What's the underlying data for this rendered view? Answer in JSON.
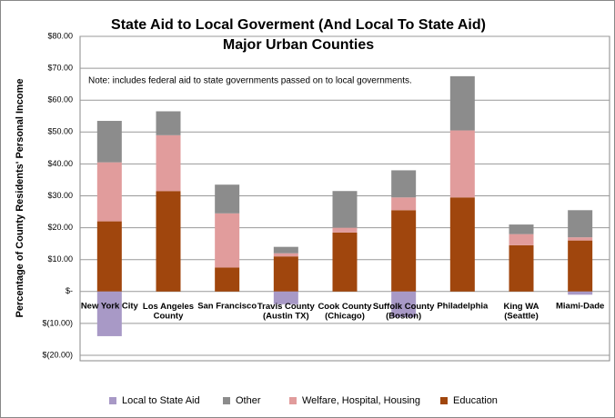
{
  "chart_data": {
    "type": "stacked_bar",
    "title": "State Aid to Local Goverment (And Local To State Aid)",
    "subtitle": "Major Urban Counties",
    "annotation": "Note:  includes federal aid to state governments passed on to local governments.",
    "y_label": "Percentage of County Residents' Personal Income",
    "categories": [
      "New York City",
      "Los Angeles\nCounty",
      "San Francisco",
      "Travis County\n(Austin TX)",
      "Cook County\n(Chicago)",
      "Suffolk County\n(Boston)",
      "Philadelphia",
      "King WA\n(Seattle)",
      "Miami-Dade"
    ],
    "series": [
      {
        "name": "Local to State  Aid",
        "color": "#a899c6",
        "values": [
          -14,
          0,
          0,
          -4,
          0,
          -8,
          0,
          0,
          -1
        ]
      },
      {
        "name": "Other",
        "color": "#8c8c8c",
        "values": [
          13,
          7.5,
          9,
          2,
          11.5,
          8.5,
          17,
          3,
          8.5
        ]
      },
      {
        "name": "Welfare, Hospital, Housing",
        "color": "#e19c9c",
        "values": [
          18.5,
          17.5,
          17,
          1,
          1.5,
          4,
          21,
          3.5,
          1
        ]
      },
      {
        "name": "Education",
        "color": "#a0460d",
        "values": [
          22,
          31.5,
          7.5,
          11,
          18.5,
          25.5,
          29.5,
          14.5,
          16
        ]
      }
    ],
    "ylim": [
      -20,
      80
    ],
    "yticks": [
      {
        "value": -20,
        "label": "$(20.00)"
      },
      {
        "value": -10,
        "label": "$(10.00)"
      },
      {
        "value": 0,
        "label": "$-"
      },
      {
        "value": 10,
        "label": "$10.00"
      },
      {
        "value": 20,
        "label": "$20.00"
      },
      {
        "value": 30,
        "label": "$30.00"
      },
      {
        "value": 40,
        "label": "$40.00"
      },
      {
        "value": 50,
        "label": "$50.00"
      },
      {
        "value": 60,
        "label": "$60.00"
      },
      {
        "value": 70,
        "label": "$70.00"
      },
      {
        "value": 80,
        "label": "$80.00"
      }
    ],
    "grid": true,
    "legend": "bottom"
  }
}
